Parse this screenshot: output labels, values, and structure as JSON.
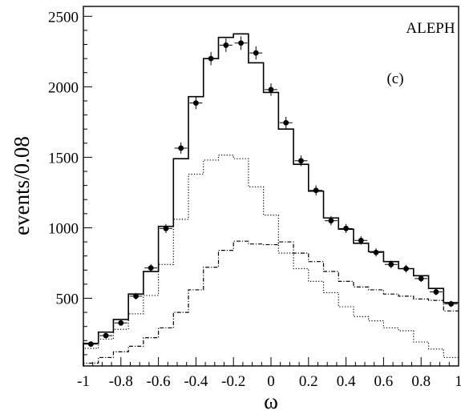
{
  "chart_data": {
    "type": "histogram",
    "xlabel": "ω",
    "ylabel": "events/0.08",
    "xlim": [
      -1,
      1
    ],
    "ylim": [
      20,
      2570
    ],
    "x_ticks": [
      -1,
      -0.8,
      -0.6,
      -0.4,
      -0.2,
      0,
      0.2,
      0.4,
      0.6,
      0.8,
      1
    ],
    "x_tick_labels": [
      "-1",
      "-0.8",
      "-0.6",
      "-0.4",
      "-0.2",
      "0",
      "0.2",
      "0.4",
      "0.6",
      "0.8",
      "1"
    ],
    "y_ticks": [
      500,
      1000,
      1500,
      2000,
      2500
    ],
    "y_tick_labels": [
      "500",
      "1000",
      "1500",
      "2000",
      "2500"
    ],
    "annotations": [
      {
        "text": "ALEPH",
        "position": "top-right"
      },
      {
        "text": "(c)",
        "position": "upper-right"
      }
    ],
    "bin_edges": [
      -1,
      -0.92,
      -0.84,
      -0.76,
      -0.68,
      -0.6,
      -0.52,
      -0.44,
      -0.36,
      -0.28,
      -0.2,
      -0.12,
      -0.04,
      0.04,
      0.12,
      0.2,
      0.28,
      0.36,
      0.44,
      0.52,
      0.6,
      0.68,
      0.76,
      0.84,
      0.92,
      1
    ],
    "series": [
      {
        "style": "solid-step",
        "values": [
          180,
          260,
          350,
          530,
          690,
          1010,
          1490,
          1930,
          2200,
          2350,
          2375,
          2170,
          1960,
          1700,
          1450,
          1260,
          1070,
          990,
          890,
          830,
          760,
          710,
          660,
          570,
          470
        ]
      },
      {
        "style": "dotted-step",
        "values": [
          145,
          210,
          280,
          390,
          520,
          740,
          1060,
          1380,
          1480,
          1515,
          1490,
          1290,
          1090,
          820,
          710,
          620,
          540,
          440,
          370,
          340,
          290,
          270,
          190,
          140,
          80
        ]
      },
      {
        "style": "dashdot-step",
        "values": [
          40,
          80,
          120,
          160,
          220,
          290,
          400,
          560,
          720,
          840,
          905,
          885,
          880,
          900,
          820,
          760,
          690,
          620,
          580,
          560,
          530,
          515,
          495,
          485,
          410
        ]
      },
      {
        "style": "points-with-errors",
        "x": [
          -0.96,
          -0.88,
          -0.8,
          -0.72,
          -0.64,
          -0.56,
          -0.48,
          -0.4,
          -0.32,
          -0.24,
          -0.16,
          -0.08,
          0,
          0.08,
          0.16,
          0.24,
          0.32,
          0.4,
          0.48,
          0.56,
          0.64,
          0.72,
          0.8,
          0.88,
          0.96
        ],
        "y": [
          175,
          235,
          325,
          515,
          715,
          995,
          1565,
          1885,
          2200,
          2295,
          2310,
          2240,
          1980,
          1745,
          1475,
          1265,
          1050,
          995,
          910,
          825,
          740,
          710,
          640,
          545,
          460
        ],
        "yerr": [
          14,
          16,
          19,
          23,
          27,
          32,
          40,
          44,
          47,
          48,
          48,
          47,
          45,
          42,
          38,
          36,
          33,
          32,
          30,
          29,
          27,
          27,
          25,
          23,
          22
        ]
      }
    ]
  }
}
